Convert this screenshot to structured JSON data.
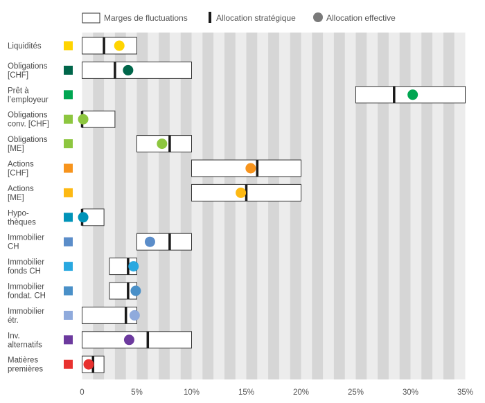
{
  "chart_data": {
    "type": "range-marker",
    "legend": {
      "range_label": "Marges de fluctuations",
      "strategic_label": "Allocation stratégique",
      "effective_label": "Allocation effective",
      "placement": "top"
    },
    "x_axis": {
      "range": [
        0,
        35
      ],
      "unit": "%",
      "ticks": [
        0,
        5,
        10,
        15,
        20,
        25,
        30,
        35
      ],
      "tick_labels": [
        "0",
        "5%",
        "10%",
        "15%",
        "20%",
        "25%",
        "30%",
        "35%"
      ],
      "alternating_bands": true
    },
    "categories": [
      {
        "label": [
          "Liquidités"
        ],
        "color": "#FFD400",
        "range": [
          0,
          5
        ],
        "strategic": 2,
        "effective": 3.4
      },
      {
        "label": [
          "Obligations",
          "[CHF]"
        ],
        "color": "#00664A",
        "range": [
          0,
          10
        ],
        "strategic": 3,
        "effective": 4.2
      },
      {
        "label": [
          "Prêt à",
          "l’employeur"
        ],
        "color": "#00A651",
        "range": [
          25,
          35
        ],
        "strategic": 28.5,
        "effective": 30.2
      },
      {
        "label": [
          "Obligations",
          "conv. [CHF]"
        ],
        "color": "#8DC63F",
        "range": [
          0,
          3
        ],
        "strategic": 0,
        "effective": 0.1
      },
      {
        "label": [
          "Obligations",
          "[ME]"
        ],
        "color": "#8DC63F",
        "range": [
          5,
          10
        ],
        "strategic": 8,
        "effective": 7.3
      },
      {
        "label": [
          "Actions",
          "[CHF]"
        ],
        "color": "#F7941D",
        "range": [
          10,
          20
        ],
        "strategic": 16,
        "effective": 15.4
      },
      {
        "label": [
          "Actions",
          "[ME]"
        ],
        "color": "#FDB913",
        "range": [
          10,
          20
        ],
        "strategic": 15,
        "effective": 14.5
      },
      {
        "label": [
          "Hypo-",
          "thèques"
        ],
        "color": "#0093B8",
        "range": [
          0,
          2
        ],
        "strategic": 0,
        "effective": 0.1
      },
      {
        "label": [
          "Immobilier",
          "CH"
        ],
        "color": "#5B8DC9",
        "range": [
          5,
          10
        ],
        "strategic": 8,
        "effective": 6.2
      },
      {
        "label": [
          "Immobilier",
          "fonds CH"
        ],
        "color": "#29A8E0",
        "range": [
          2.5,
          5
        ],
        "strategic": 4.2,
        "effective": 4.7
      },
      {
        "label": [
          "Immobilier",
          "fondat. CH"
        ],
        "color": "#4A90C8",
        "range": [
          2.5,
          5
        ],
        "strategic": 4.2,
        "effective": 4.9
      },
      {
        "label": [
          "Immobilier",
          "étr."
        ],
        "color": "#8FAADC",
        "range": [
          0,
          5
        ],
        "strategic": 4,
        "effective": 4.8
      },
      {
        "label": [
          "Inv.",
          "alternatifs"
        ],
        "color": "#6C3A9E",
        "range": [
          0,
          10
        ],
        "strategic": 6,
        "effective": 4.3
      },
      {
        "label": [
          "Matières",
          "premières"
        ],
        "color": "#E8312F",
        "range": [
          0,
          2
        ],
        "strategic": 1,
        "effective": 0.6
      }
    ]
  }
}
